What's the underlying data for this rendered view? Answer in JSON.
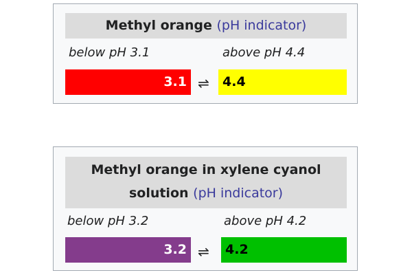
{
  "boxes": [
    {
      "title": "Methyl orange",
      "open": "(",
      "link": "pH indicator",
      "close": ")",
      "low": {
        "label": "below pH 3.1",
        "value": "3.1",
        "color": "#ff0000"
      },
      "arrow": "⇌",
      "high": {
        "label": "above pH 4.4",
        "value": "4.4",
        "color": "#ffff00"
      }
    },
    {
      "title": "Methyl orange in xylene cyanol solution",
      "open": "(",
      "link": "pH indicator",
      "close": ")",
      "low": {
        "label": "below pH 3.2",
        "value": "3.2",
        "color": "#843c8c"
      },
      "arrow": "⇌",
      "high": {
        "label": "above pH 4.2",
        "value": "4.2",
        "color": "#00c000"
      }
    }
  ]
}
